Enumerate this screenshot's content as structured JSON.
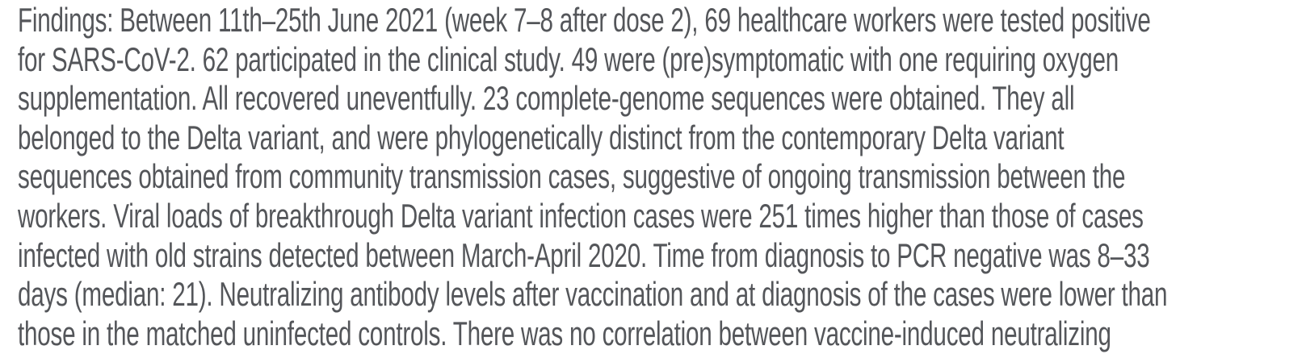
{
  "page": {
    "background": "#ffffff",
    "text_color": "#54565a"
  },
  "paragraph": {
    "section_label": "Findings:",
    "lines": [
      "Findings: Between 11th–25th June 2021 (week 7–8 after dose 2), 69 healthcare workers were tested positive",
      "for SARS-CoV-2. 62 participated in the clinical study. 49 were (pre)symptomatic with one requiring oxygen",
      "supplementation. All recovered uneventfully. 23 complete-genome sequences were obtained. They all",
      "belonged to the Delta variant, and were phylogenetically distinct from the contemporary Delta variant",
      "sequences obtained from community transmission cases, suggestive of ongoing transmission between the",
      "workers. Viral loads of breakthrough Delta variant infection cases were 251 times higher than those of cases",
      "infected with old strains detected between March-April 2020. Time from diagnosis to PCR negative was 8–33",
      "days (median: 21). Neutralizing antibody levels after vaccination and at diagnosis of the cases were lower than",
      "those in the matched uninfected controls. There was no correlation between vaccine-induced neutralizing"
    ]
  }
}
